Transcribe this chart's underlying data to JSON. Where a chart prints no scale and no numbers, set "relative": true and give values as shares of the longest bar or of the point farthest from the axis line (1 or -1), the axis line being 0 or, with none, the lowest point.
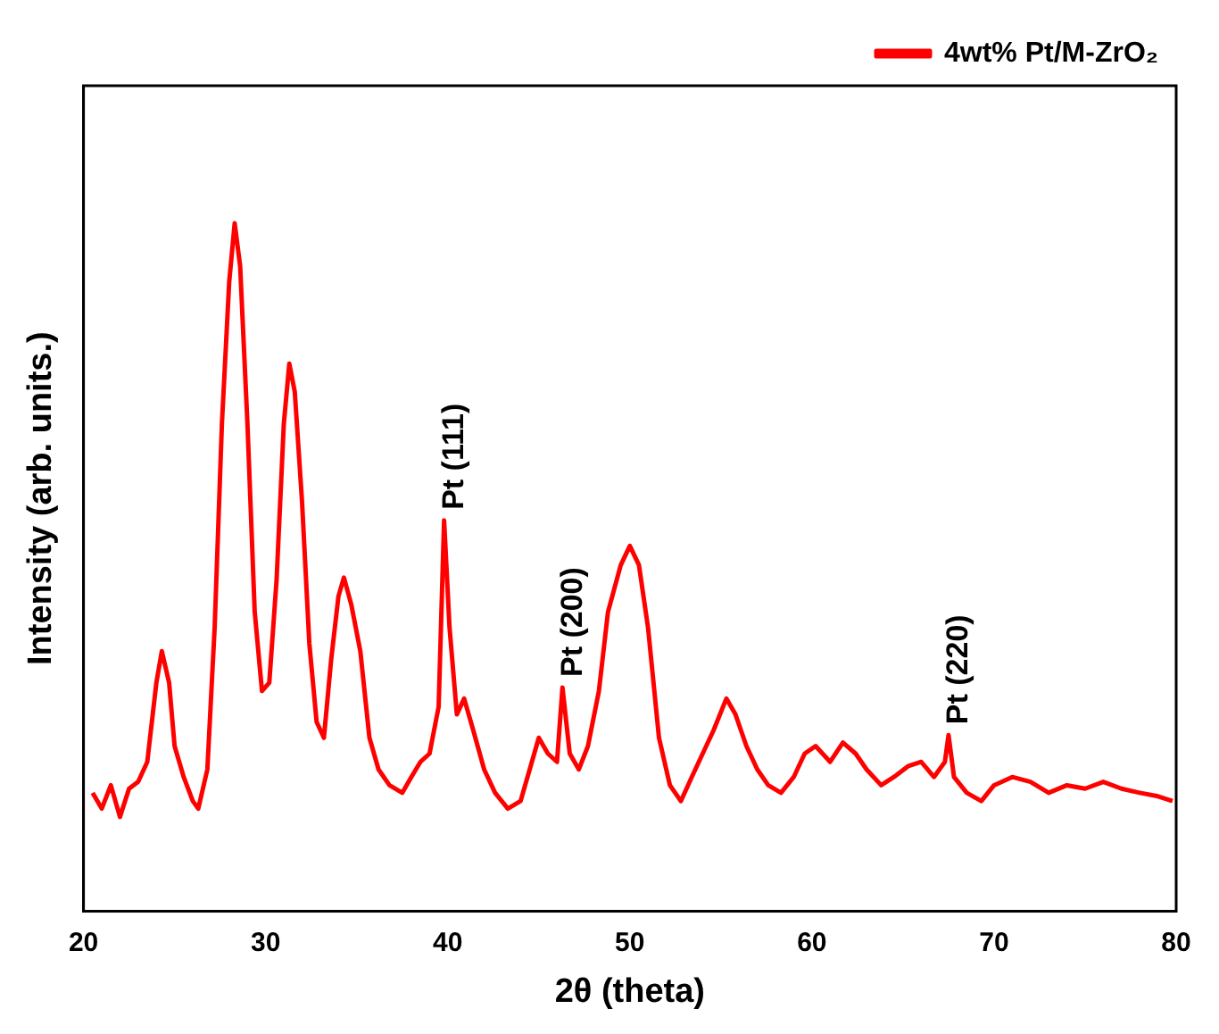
{
  "chart_data": {
    "type": "line",
    "relative": true,
    "xlabel": "2θ (theta)",
    "ylabel": "Intensity (arb. units.)",
    "xlim": [
      20,
      80
    ],
    "xticks": [
      20,
      30,
      40,
      50,
      60,
      70,
      80
    ],
    "legend": "top right",
    "marker": "none",
    "line_style": "solid",
    "grid": false,
    "series": [
      {
        "name": "4wt% Pt/M-ZrO₂",
        "color": "#ff0000",
        "x": [
          20.5,
          21,
          21.5,
          22,
          22.5,
          23,
          23.5,
          24,
          24.3,
          24.7,
          25,
          25.5,
          26,
          26.3,
          26.8,
          27.2,
          27.6,
          28,
          28.3,
          28.6,
          29,
          29.4,
          29.8,
          30.2,
          30.6,
          31,
          31.3,
          31.6,
          32,
          32.4,
          32.8,
          33.2,
          33.6,
          34,
          34.3,
          34.7,
          35.2,
          35.7,
          36.2,
          36.8,
          37.5,
          38,
          38.5,
          39,
          39.5,
          39.8,
          40.1,
          40.5,
          40.9,
          41.4,
          42,
          42.6,
          43.3,
          44,
          44.5,
          45,
          45.5,
          46,
          46.3,
          46.7,
          47.2,
          47.7,
          48.3,
          48.8,
          49.5,
          50,
          50.5,
          51,
          51.6,
          52.2,
          52.8,
          53.4,
          54,
          54.6,
          55.3,
          55.8,
          56.4,
          57,
          57.6,
          58.3,
          59,
          59.6,
          60.2,
          61,
          61.7,
          62.4,
          63,
          63.8,
          64.5,
          65.3,
          66,
          66.7,
          67.3,
          67.5,
          67.8,
          68.5,
          69.3,
          70,
          71,
          72,
          73,
          74,
          75,
          76,
          77,
          78,
          79,
          79.8
        ],
        "values": [
          0.172,
          0.149,
          0.183,
          0.137,
          0.178,
          0.188,
          0.217,
          0.332,
          0.378,
          0.332,
          0.24,
          0.195,
          0.16,
          0.149,
          0.206,
          0.412,
          0.709,
          0.915,
          1.0,
          0.938,
          0.709,
          0.435,
          0.32,
          0.332,
          0.481,
          0.709,
          0.796,
          0.755,
          0.595,
          0.389,
          0.275,
          0.252,
          0.366,
          0.458,
          0.485,
          0.446,
          0.378,
          0.252,
          0.206,
          0.183,
          0.172,
          0.195,
          0.217,
          0.229,
          0.297,
          0.568,
          0.412,
          0.286,
          0.309,
          0.263,
          0.206,
          0.172,
          0.149,
          0.16,
          0.206,
          0.252,
          0.229,
          0.217,
          0.325,
          0.229,
          0.206,
          0.24,
          0.32,
          0.435,
          0.503,
          0.531,
          0.503,
          0.412,
          0.252,
          0.183,
          0.16,
          0.195,
          0.229,
          0.263,
          0.309,
          0.286,
          0.24,
          0.206,
          0.183,
          0.172,
          0.195,
          0.229,
          0.24,
          0.217,
          0.245,
          0.229,
          0.206,
          0.183,
          0.195,
          0.211,
          0.217,
          0.195,
          0.217,
          0.256,
          0.195,
          0.172,
          0.16,
          0.183,
          0.195,
          0.188,
          0.172,
          0.183,
          0.178,
          0.188,
          0.178,
          0.172,
          0.167,
          0.16
        ]
      }
    ],
    "annotations": [
      {
        "text": "Pt (111)",
        "x": 39.8,
        "y": 0.568
      },
      {
        "text": "Pt (200)",
        "x": 46.3,
        "y": 0.325
      },
      {
        "text": "Pt (220)",
        "x": 67.5,
        "y": 0.256
      }
    ]
  }
}
